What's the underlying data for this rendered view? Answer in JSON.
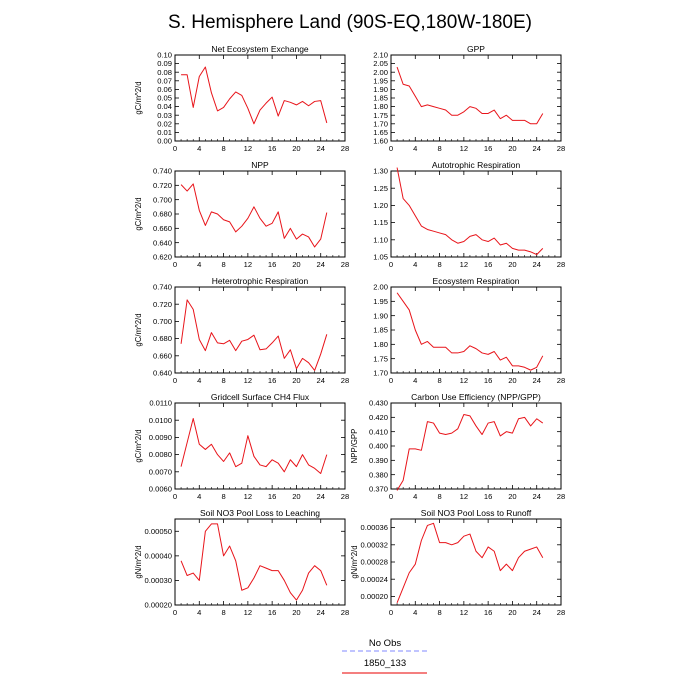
{
  "title": "S. Hemisphere Land (90S-EQ,180W-180E)",
  "legend": [
    {
      "label": "No Obs",
      "color": "#9aa0ff",
      "dash": true
    },
    {
      "label": "1850_133",
      "color": "#ee3333",
      "dash": false
    }
  ],
  "line_color": "#e8141a",
  "chart_data": [
    {
      "type": "line",
      "title": "Net Ecosystem Exchange",
      "ylabel": "gC/m^2/d",
      "xlim": [
        0,
        28
      ],
      "xticks": [
        0,
        4,
        8,
        12,
        16,
        20,
        24,
        28
      ],
      "ylim": [
        0.0,
        0.1
      ],
      "yticks": [
        "0.00",
        "0.01",
        "0.02",
        "0.03",
        "0.04",
        "0.05",
        "0.06",
        "0.07",
        "0.08",
        "0.09",
        "0.10"
      ],
      "x": [
        1,
        2,
        3,
        4,
        5,
        6,
        7,
        8,
        9,
        10,
        11,
        12,
        13,
        14,
        15,
        16,
        17,
        18,
        19,
        20,
        21,
        22,
        23,
        24,
        25
      ],
      "y": [
        0.077,
        0.077,
        0.039,
        0.075,
        0.086,
        0.056,
        0.035,
        0.039,
        0.049,
        0.057,
        0.053,
        0.038,
        0.02,
        0.036,
        0.044,
        0.051,
        0.029,
        0.047,
        0.045,
        0.042,
        0.046,
        0.041,
        0.046,
        0.047,
        0.021
      ]
    },
    {
      "type": "line",
      "title": "GPP",
      "ylabel": "",
      "xlim": [
        0,
        28
      ],
      "xticks": [
        0,
        4,
        8,
        12,
        16,
        20,
        24,
        28
      ],
      "ylim": [
        1.6,
        2.1
      ],
      "yticks": [
        "1.60",
        "1.65",
        "1.70",
        "1.75",
        "1.80",
        "1.85",
        "1.90",
        "1.95",
        "2.00",
        "2.05",
        "2.10"
      ],
      "x": [
        1,
        2,
        3,
        4,
        5,
        6,
        7,
        8,
        9,
        10,
        11,
        12,
        13,
        14,
        15,
        16,
        17,
        18,
        19,
        20,
        21,
        22,
        23,
        24,
        25
      ],
      "y": [
        2.03,
        1.93,
        1.92,
        1.86,
        1.8,
        1.81,
        1.8,
        1.79,
        1.78,
        1.75,
        1.75,
        1.77,
        1.8,
        1.79,
        1.76,
        1.76,
        1.78,
        1.73,
        1.75,
        1.72,
        1.72,
        1.72,
        1.7,
        1.7,
        1.76
      ]
    },
    {
      "type": "line",
      "title": "NPP",
      "ylabel": "gC/m^2/d",
      "xlim": [
        0,
        28
      ],
      "xticks": [
        0,
        4,
        8,
        12,
        16,
        20,
        24,
        28
      ],
      "ylim": [
        0.62,
        0.74
      ],
      "yticks": [
        "0.620",
        "0.640",
        "0.660",
        "0.680",
        "0.700",
        "0.720",
        "0.740"
      ],
      "x": [
        1,
        2,
        3,
        4,
        5,
        6,
        7,
        8,
        9,
        10,
        11,
        12,
        13,
        14,
        15,
        16,
        17,
        18,
        19,
        20,
        21,
        22,
        23,
        24,
        25
      ],
      "y": [
        0.721,
        0.712,
        0.722,
        0.685,
        0.664,
        0.683,
        0.68,
        0.672,
        0.669,
        0.655,
        0.663,
        0.674,
        0.69,
        0.674,
        0.663,
        0.667,
        0.683,
        0.646,
        0.66,
        0.645,
        0.652,
        0.648,
        0.634,
        0.645,
        0.682
      ]
    },
    {
      "type": "line",
      "title": "Autotrophic Respiration",
      "ylabel": "",
      "xlim": [
        0,
        28
      ],
      "xticks": [
        0,
        4,
        8,
        12,
        16,
        20,
        24,
        28
      ],
      "ylim": [
        1.05,
        1.3
      ],
      "yticks": [
        "1.05",
        "1.10",
        "1.15",
        "1.20",
        "1.25",
        "1.30"
      ],
      "x": [
        1,
        2,
        3,
        4,
        5,
        6,
        7,
        8,
        9,
        10,
        11,
        12,
        13,
        14,
        15,
        16,
        17,
        18,
        19,
        20,
        21,
        22,
        23,
        24,
        25
      ],
      "y": [
        1.31,
        1.22,
        1.2,
        1.17,
        1.14,
        1.13,
        1.125,
        1.12,
        1.115,
        1.1,
        1.09,
        1.095,
        1.11,
        1.115,
        1.1,
        1.095,
        1.105,
        1.085,
        1.09,
        1.075,
        1.07,
        1.07,
        1.065,
        1.057,
        1.075
      ]
    },
    {
      "type": "line",
      "title": "Heterotrophic Respiration",
      "ylabel": "gC/m^2/d",
      "xlim": [
        0,
        28
      ],
      "xticks": [
        0,
        4,
        8,
        12,
        16,
        20,
        24,
        28
      ],
      "ylim": [
        0.64,
        0.74
      ],
      "yticks": [
        "0.640",
        "0.660",
        "0.680",
        "0.700",
        "0.720",
        "0.740"
      ],
      "x": [
        1,
        2,
        3,
        4,
        5,
        6,
        7,
        8,
        9,
        10,
        11,
        12,
        13,
        14,
        15,
        16,
        17,
        18,
        19,
        20,
        21,
        22,
        23,
        24,
        25
      ],
      "y": [
        0.674,
        0.725,
        0.714,
        0.679,
        0.666,
        0.687,
        0.675,
        0.674,
        0.678,
        0.666,
        0.677,
        0.679,
        0.684,
        0.667,
        0.668,
        0.675,
        0.683,
        0.657,
        0.667,
        0.645,
        0.657,
        0.652,
        0.643,
        0.662,
        0.685
      ]
    },
    {
      "type": "line",
      "title": "Ecosystem Respiration",
      "ylabel": "",
      "xlim": [
        0,
        28
      ],
      "xticks": [
        0,
        4,
        8,
        12,
        16,
        20,
        24,
        28
      ],
      "ylim": [
        1.7,
        2.0
      ],
      "yticks": [
        "1.70",
        "1.75",
        "1.80",
        "1.85",
        "1.90",
        "1.95",
        "2.00"
      ],
      "x": [
        1,
        2,
        3,
        4,
        5,
        6,
        7,
        8,
        9,
        10,
        11,
        12,
        13,
        14,
        15,
        16,
        17,
        18,
        19,
        20,
        21,
        22,
        23,
        24,
        25
      ],
      "y": [
        1.98,
        1.95,
        1.92,
        1.85,
        1.8,
        1.81,
        1.79,
        1.79,
        1.79,
        1.77,
        1.77,
        1.775,
        1.795,
        1.785,
        1.77,
        1.765,
        1.775,
        1.745,
        1.755,
        1.725,
        1.725,
        1.72,
        1.71,
        1.72,
        1.76
      ]
    },
    {
      "type": "line",
      "title": "Gridcell Surface CH4 Flux",
      "ylabel": "gC/m^2/d",
      "xlim": [
        0,
        28
      ],
      "xticks": [
        0,
        4,
        8,
        12,
        16,
        20,
        24,
        28
      ],
      "ylim": [
        0.006,
        0.011
      ],
      "yticks": [
        "0.0060",
        "0.0070",
        "0.0080",
        "0.0090",
        "0.0100",
        "0.0110"
      ],
      "x": [
        1,
        2,
        3,
        4,
        5,
        6,
        7,
        8,
        9,
        10,
        11,
        12,
        13,
        14,
        15,
        16,
        17,
        18,
        19,
        20,
        21,
        22,
        23,
        24,
        25
      ],
      "y": [
        0.0073,
        0.0087,
        0.0101,
        0.0086,
        0.0083,
        0.0086,
        0.008,
        0.0076,
        0.0081,
        0.0073,
        0.0075,
        0.0091,
        0.0079,
        0.0074,
        0.0073,
        0.0077,
        0.0075,
        0.007,
        0.0077,
        0.0073,
        0.008,
        0.0074,
        0.0072,
        0.0069,
        0.008
      ]
    },
    {
      "type": "line",
      "title": "Carbon Use Efficiency (NPP/GPP)",
      "ylabel": "NPP/GPP",
      "xlim": [
        0,
        28
      ],
      "xticks": [
        0,
        4,
        8,
        12,
        16,
        20,
        24,
        28
      ],
      "ylim": [
        0.37,
        0.43
      ],
      "yticks": [
        "0.370",
        "0.380",
        "0.390",
        "0.400",
        "0.410",
        "0.420",
        "0.430"
      ],
      "x": [
        1,
        2,
        3,
        4,
        5,
        6,
        7,
        8,
        9,
        10,
        11,
        12,
        13,
        14,
        15,
        16,
        17,
        18,
        19,
        20,
        21,
        22,
        23,
        24,
        25
      ],
      "y": [
        0.369,
        0.376,
        0.398,
        0.398,
        0.397,
        0.417,
        0.416,
        0.409,
        0.408,
        0.409,
        0.412,
        0.422,
        0.421,
        0.414,
        0.408,
        0.416,
        0.417,
        0.407,
        0.41,
        0.409,
        0.419,
        0.42,
        0.414,
        0.419,
        0.416
      ]
    },
    {
      "type": "line",
      "title": "Soil NO3 Pool Loss to Leaching",
      "ylabel": "gN/m^2/d",
      "xlim": [
        0,
        28
      ],
      "xticks": [
        0,
        4,
        8,
        12,
        16,
        20,
        24,
        28
      ],
      "ylim": [
        0.0002,
        0.00055
      ],
      "yticks": [
        "0.00020",
        "0.00030",
        "0.00040",
        "0.00050"
      ],
      "x": [
        1,
        2,
        3,
        4,
        5,
        6,
        7,
        8,
        9,
        10,
        11,
        12,
        13,
        14,
        15,
        16,
        17,
        18,
        19,
        20,
        21,
        22,
        23,
        24,
        25
      ],
      "y": [
        0.00038,
        0.00032,
        0.00033,
        0.0003,
        0.0005,
        0.00053,
        0.00053,
        0.0004,
        0.00044,
        0.00038,
        0.00026,
        0.00027,
        0.00031,
        0.00036,
        0.00035,
        0.00034,
        0.00034,
        0.0003,
        0.00025,
        0.00022,
        0.00026,
        0.00033,
        0.00036,
        0.00034,
        0.00028
      ]
    },
    {
      "type": "line",
      "title": "Soil NO3 Pool Loss to Runoff",
      "ylabel": "gN/m^2/d",
      "xlim": [
        0,
        28
      ],
      "xticks": [
        0,
        4,
        8,
        12,
        16,
        20,
        24,
        28
      ],
      "ylim": [
        0.00018,
        0.00038
      ],
      "yticks": [
        "0.00020",
        "0.00024",
        "0.00028",
        "0.00032",
        "0.00036"
      ],
      "x": [
        1,
        2,
        3,
        4,
        5,
        6,
        7,
        8,
        9,
        10,
        11,
        12,
        13,
        14,
        15,
        16,
        17,
        18,
        19,
        20,
        21,
        22,
        23,
        24,
        25
      ],
      "y": [
        0.000185,
        0.00022,
        0.000255,
        0.000275,
        0.00033,
        0.000365,
        0.00037,
        0.000325,
        0.000325,
        0.00032,
        0.000325,
        0.00034,
        0.000345,
        0.000305,
        0.00029,
        0.000315,
        0.000305,
        0.00026,
        0.000275,
        0.00026,
        0.00029,
        0.000305,
        0.00031,
        0.000315,
        0.00029
      ]
    }
  ]
}
